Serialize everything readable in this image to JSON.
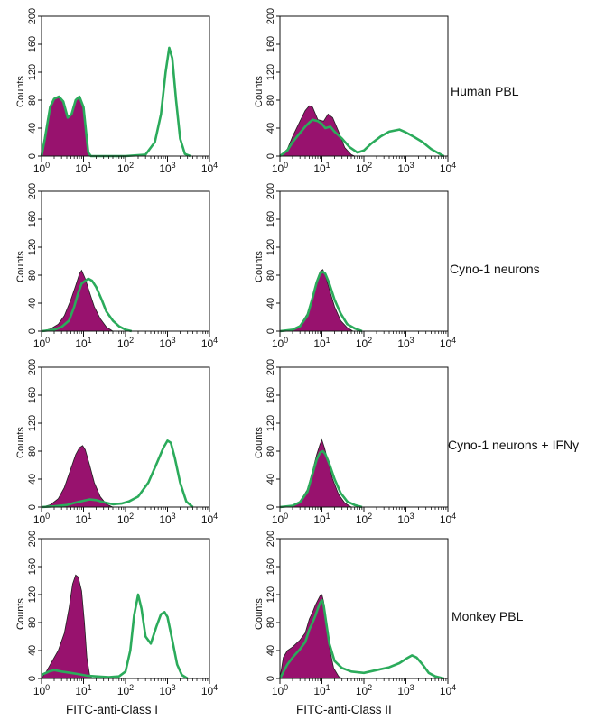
{
  "figure": {
    "row_labels": [
      "Human PBL",
      "Cyno-1 neurons",
      "Cyno-1 neurons + IFNγ",
      "Monkey PBL"
    ],
    "column_xlabels": [
      "FITC-anti-Class I",
      "FITC-anti-Class II"
    ]
  },
  "colors": {
    "filled": "#98126e",
    "outline": "#2bab5b",
    "axis": "#111111"
  },
  "chart_data": [
    {
      "type": "area",
      "row": "Human PBL",
      "column": "FITC-anti-Class I",
      "xscale": "log",
      "xlim": [
        1,
        10000
      ],
      "ylim": [
        0,
        200
      ],
      "xticks": [
        1,
        10,
        100,
        1000,
        10000
      ],
      "yticks": [
        0,
        40,
        80,
        120,
        160,
        200
      ],
      "ylabel": "Counts",
      "filled": [
        [
          1,
          0
        ],
        [
          1.2,
          25
        ],
        [
          1.6,
          70
        ],
        [
          2,
          82
        ],
        [
          2.6,
          85
        ],
        [
          3.3,
          78
        ],
        [
          4.2,
          55
        ],
        [
          5.2,
          60
        ],
        [
          6.5,
          80
        ],
        [
          8,
          85
        ],
        [
          10,
          70
        ],
        [
          11.5,
          35
        ],
        [
          13,
          5
        ],
        [
          15,
          0
        ]
      ],
      "outline": [
        [
          1,
          0
        ],
        [
          1.2,
          25
        ],
        [
          1.6,
          70
        ],
        [
          2,
          82
        ],
        [
          2.6,
          85
        ],
        [
          3.3,
          78
        ],
        [
          4.2,
          55
        ],
        [
          5.2,
          60
        ],
        [
          6.5,
          80
        ],
        [
          8,
          85
        ],
        [
          10,
          70
        ],
        [
          11.5,
          35
        ],
        [
          13,
          5
        ],
        [
          15,
          0
        ],
        [
          100,
          0
        ],
        [
          300,
          2
        ],
        [
          500,
          20
        ],
        [
          700,
          60
        ],
        [
          900,
          120
        ],
        [
          1100,
          155
        ],
        [
          1300,
          140
        ],
        [
          1600,
          80
        ],
        [
          2000,
          25
        ],
        [
          2600,
          3
        ],
        [
          3500,
          0
        ]
      ]
    },
    {
      "type": "area",
      "row": "Human PBL",
      "column": "FITC-anti-Class II",
      "xscale": "log",
      "xlim": [
        1,
        10000
      ],
      "ylim": [
        0,
        200
      ],
      "xticks": [
        1,
        10,
        100,
        1000,
        10000
      ],
      "yticks": [
        0,
        40,
        80,
        120,
        160,
        200
      ],
      "ylabel": "Counts",
      "filled": [
        [
          1,
          0
        ],
        [
          1.5,
          10
        ],
        [
          2,
          28
        ],
        [
          3,
          50
        ],
        [
          4,
          65
        ],
        [
          5,
          72
        ],
        [
          6,
          70
        ],
        [
          8,
          52
        ],
        [
          11,
          50
        ],
        [
          14,
          60
        ],
        [
          18,
          55
        ],
        [
          25,
          35
        ],
        [
          35,
          12
        ],
        [
          50,
          2
        ],
        [
          60,
          0
        ]
      ],
      "outline": [
        [
          1,
          0
        ],
        [
          1.5,
          8
        ],
        [
          2,
          20
        ],
        [
          3,
          33
        ],
        [
          4,
          42
        ],
        [
          5,
          48
        ],
        [
          6,
          52
        ],
        [
          8,
          50
        ],
        [
          10,
          46
        ],
        [
          12,
          40
        ],
        [
          16,
          42
        ],
        [
          20,
          35
        ],
        [
          30,
          25
        ],
        [
          45,
          13
        ],
        [
          70,
          5
        ],
        [
          100,
          8
        ],
        [
          150,
          18
        ],
        [
          250,
          28
        ],
        [
          400,
          35
        ],
        [
          700,
          38
        ],
        [
          1000,
          34
        ],
        [
          1500,
          28
        ],
        [
          2500,
          20
        ],
        [
          4000,
          10
        ],
        [
          6000,
          4
        ],
        [
          8000,
          0
        ]
      ]
    },
    {
      "type": "area",
      "row": "Cyno-1 neurons",
      "column": "FITC-anti-Class I",
      "xscale": "log",
      "xlim": [
        1,
        10000
      ],
      "ylim": [
        0,
        200
      ],
      "xticks": [
        1,
        10,
        100,
        1000,
        10000
      ],
      "yticks": [
        0,
        40,
        80,
        120,
        160,
        200
      ],
      "ylabel": "Counts",
      "filled": [
        [
          1,
          0
        ],
        [
          1.6,
          3
        ],
        [
          2.5,
          10
        ],
        [
          3.5,
          22
        ],
        [
          5,
          45
        ],
        [
          6.5,
          65
        ],
        [
          8,
          82
        ],
        [
          9,
          87
        ],
        [
          11,
          75
        ],
        [
          14,
          55
        ],
        [
          18,
          35
        ],
        [
          25,
          18
        ],
        [
          35,
          6
        ],
        [
          50,
          0
        ]
      ],
      "outline": [
        [
          1,
          0
        ],
        [
          2,
          2
        ],
        [
          3,
          6
        ],
        [
          4.5,
          15
        ],
        [
          6,
          35
        ],
        [
          7.5,
          55
        ],
        [
          9,
          68
        ],
        [
          11,
          72
        ],
        [
          13,
          75
        ],
        [
          16,
          72
        ],
        [
          20,
          63
        ],
        [
          27,
          45
        ],
        [
          35,
          28
        ],
        [
          50,
          15
        ],
        [
          70,
          7
        ],
        [
          100,
          2
        ],
        [
          140,
          0
        ]
      ]
    },
    {
      "type": "area",
      "row": "Cyno-1 neurons",
      "column": "FITC-anti-Class II",
      "xscale": "log",
      "xlim": [
        1,
        10000
      ],
      "ylim": [
        0,
        200
      ],
      "xticks": [
        1,
        10,
        100,
        1000,
        10000
      ],
      "yticks": [
        0,
        40,
        80,
        120,
        160,
        200
      ],
      "ylabel": "Counts",
      "filled": [
        [
          1,
          0
        ],
        [
          2,
          2
        ],
        [
          3,
          8
        ],
        [
          4.5,
          25
        ],
        [
          6,
          50
        ],
        [
          7.5,
          72
        ],
        [
          9,
          85
        ],
        [
          10.5,
          88
        ],
        [
          12,
          80
        ],
        [
          15,
          60
        ],
        [
          20,
          35
        ],
        [
          28,
          15
        ],
        [
          40,
          5
        ],
        [
          55,
          0
        ]
      ],
      "outline": [
        [
          1,
          0
        ],
        [
          2,
          2
        ],
        [
          3,
          7
        ],
        [
          4.5,
          22
        ],
        [
          6,
          48
        ],
        [
          7.5,
          70
        ],
        [
          9,
          82
        ],
        [
          10.5,
          85
        ],
        [
          12,
          82
        ],
        [
          15,
          68
        ],
        [
          20,
          45
        ],
        [
          28,
          25
        ],
        [
          40,
          10
        ],
        [
          60,
          4
        ],
        [
          90,
          0
        ]
      ]
    },
    {
      "type": "area",
      "row": "Cyno-1 neurons + IFNγ",
      "column": "FITC-anti-Class I",
      "xscale": "log",
      "xlim": [
        1,
        10000
      ],
      "ylim": [
        0,
        200
      ],
      "xticks": [
        1,
        10,
        100,
        1000,
        10000
      ],
      "yticks": [
        0,
        40,
        80,
        120,
        160,
        200
      ],
      "ylabel": "Counts",
      "filled": [
        [
          1,
          0
        ],
        [
          1.6,
          3
        ],
        [
          2.5,
          12
        ],
        [
          3.5,
          28
        ],
        [
          5,
          55
        ],
        [
          6.5,
          75
        ],
        [
          8,
          85
        ],
        [
          9.5,
          88
        ],
        [
          11,
          82
        ],
        [
          14,
          60
        ],
        [
          18,
          35
        ],
        [
          25,
          15
        ],
        [
          35,
          4
        ],
        [
          50,
          0
        ]
      ],
      "outline": [
        [
          1,
          0
        ],
        [
          2,
          1
        ],
        [
          4,
          3
        ],
        [
          6,
          6
        ],
        [
          10,
          9
        ],
        [
          14,
          11
        ],
        [
          20,
          10
        ],
        [
          30,
          7
        ],
        [
          50,
          4
        ],
        [
          80,
          5
        ],
        [
          120,
          8
        ],
        [
          200,
          15
        ],
        [
          350,
          35
        ],
        [
          550,
          62
        ],
        [
          800,
          85
        ],
        [
          1000,
          95
        ],
        [
          1200,
          92
        ],
        [
          1500,
          70
        ],
        [
          2000,
          35
        ],
        [
          2800,
          8
        ],
        [
          4000,
          0
        ]
      ]
    },
    {
      "type": "area",
      "row": "Cyno-1 neurons + IFNγ",
      "column": "FITC-anti-Class II",
      "xscale": "log",
      "xlim": [
        1,
        10000
      ],
      "ylim": [
        0,
        200
      ],
      "xticks": [
        1,
        10,
        100,
        1000,
        10000
      ],
      "yticks": [
        0,
        40,
        80,
        120,
        160,
        200
      ],
      "ylabel": "Counts",
      "filled": [
        [
          1,
          0
        ],
        [
          2,
          2
        ],
        [
          3,
          8
        ],
        [
          4.5,
          25
        ],
        [
          6,
          52
        ],
        [
          7.5,
          75
        ],
        [
          9,
          90
        ],
        [
          10,
          96
        ],
        [
          11.5,
          85
        ],
        [
          14,
          65
        ],
        [
          18,
          40
        ],
        [
          25,
          18
        ],
        [
          35,
          6
        ],
        [
          50,
          0
        ]
      ],
      "outline": [
        [
          1,
          0
        ],
        [
          2,
          2
        ],
        [
          3,
          7
        ],
        [
          4.5,
          22
        ],
        [
          6,
          48
        ],
        [
          7.5,
          68
        ],
        [
          9,
          78
        ],
        [
          10.5,
          80
        ],
        [
          12,
          76
        ],
        [
          15,
          62
        ],
        [
          20,
          40
        ],
        [
          28,
          20
        ],
        [
          40,
          8
        ],
        [
          60,
          3
        ],
        [
          90,
          0
        ]
      ]
    },
    {
      "type": "area",
      "row": "Monkey PBL",
      "column": "FITC-anti-Class I",
      "xscale": "log",
      "xlim": [
        1,
        10000
      ],
      "ylim": [
        0,
        200
      ],
      "xticks": [
        1,
        10,
        100,
        1000,
        10000
      ],
      "yticks": [
        0,
        40,
        80,
        120,
        160,
        200
      ],
      "ylabel": "Counts",
      "filled": [
        [
          1,
          0
        ],
        [
          1.3,
          10
        ],
        [
          1.8,
          25
        ],
        [
          2.5,
          40
        ],
        [
          3.5,
          65
        ],
        [
          4.5,
          100
        ],
        [
          5.5,
          135
        ],
        [
          6.5,
          148
        ],
        [
          7.5,
          145
        ],
        [
          9,
          125
        ],
        [
          10.5,
          80
        ],
        [
          12,
          30
        ],
        [
          14,
          5
        ],
        [
          16,
          0
        ]
      ],
      "outline": [
        [
          1,
          5
        ],
        [
          1.5,
          10
        ],
        [
          2,
          12
        ],
        [
          3,
          10
        ],
        [
          5,
          8
        ],
        [
          8,
          6
        ],
        [
          12,
          4
        ],
        [
          20,
          3
        ],
        [
          40,
          2
        ],
        [
          70,
          3
        ],
        [
          100,
          10
        ],
        [
          130,
          40
        ],
        [
          160,
          90
        ],
        [
          200,
          120
        ],
        [
          240,
          100
        ],
        [
          300,
          60
        ],
        [
          400,
          50
        ],
        [
          550,
          75
        ],
        [
          700,
          92
        ],
        [
          850,
          95
        ],
        [
          1000,
          88
        ],
        [
          1300,
          55
        ],
        [
          1700,
          20
        ],
        [
          2200,
          5
        ],
        [
          3000,
          0
        ]
      ]
    },
    {
      "type": "area",
      "row": "Monkey PBL",
      "column": "FITC-anti-Class II",
      "xscale": "log",
      "xlim": [
        1,
        10000
      ],
      "ylim": [
        0,
        200
      ],
      "xticks": [
        1,
        10,
        100,
        1000,
        10000
      ],
      "yticks": [
        0,
        40,
        80,
        120,
        160,
        200
      ],
      "ylabel": "Counts",
      "filled": [
        [
          1,
          0
        ],
        [
          1.2,
          30
        ],
        [
          1.5,
          40
        ],
        [
          2,
          45
        ],
        [
          3,
          55
        ],
        [
          4,
          65
        ],
        [
          5,
          85
        ],
        [
          6,
          95
        ],
        [
          7,
          105
        ],
        [
          8,
          112
        ],
        [
          9,
          118
        ],
        [
          10,
          120
        ],
        [
          11,
          110
        ],
        [
          12.5,
          85
        ],
        [
          15,
          45
        ],
        [
          19,
          15
        ],
        [
          25,
          3
        ],
        [
          30,
          0
        ]
      ],
      "outline": [
        [
          1,
          0
        ],
        [
          1.5,
          20
        ],
        [
          2,
          30
        ],
        [
          3,
          42
        ],
        [
          4,
          52
        ],
        [
          5,
          70
        ],
        [
          6,
          80
        ],
        [
          7,
          90
        ],
        [
          8,
          100
        ],
        [
          9,
          108
        ],
        [
          10,
          112
        ],
        [
          11,
          105
        ],
        [
          12.5,
          82
        ],
        [
          15,
          50
        ],
        [
          20,
          25
        ],
        [
          30,
          15
        ],
        [
          50,
          10
        ],
        [
          100,
          8
        ],
        [
          200,
          12
        ],
        [
          400,
          16
        ],
        [
          700,
          22
        ],
        [
          1000,
          28
        ],
        [
          1400,
          33
        ],
        [
          1800,
          30
        ],
        [
          2500,
          20
        ],
        [
          3500,
          8
        ],
        [
          5000,
          3
        ],
        [
          8000,
          0
        ]
      ]
    }
  ]
}
